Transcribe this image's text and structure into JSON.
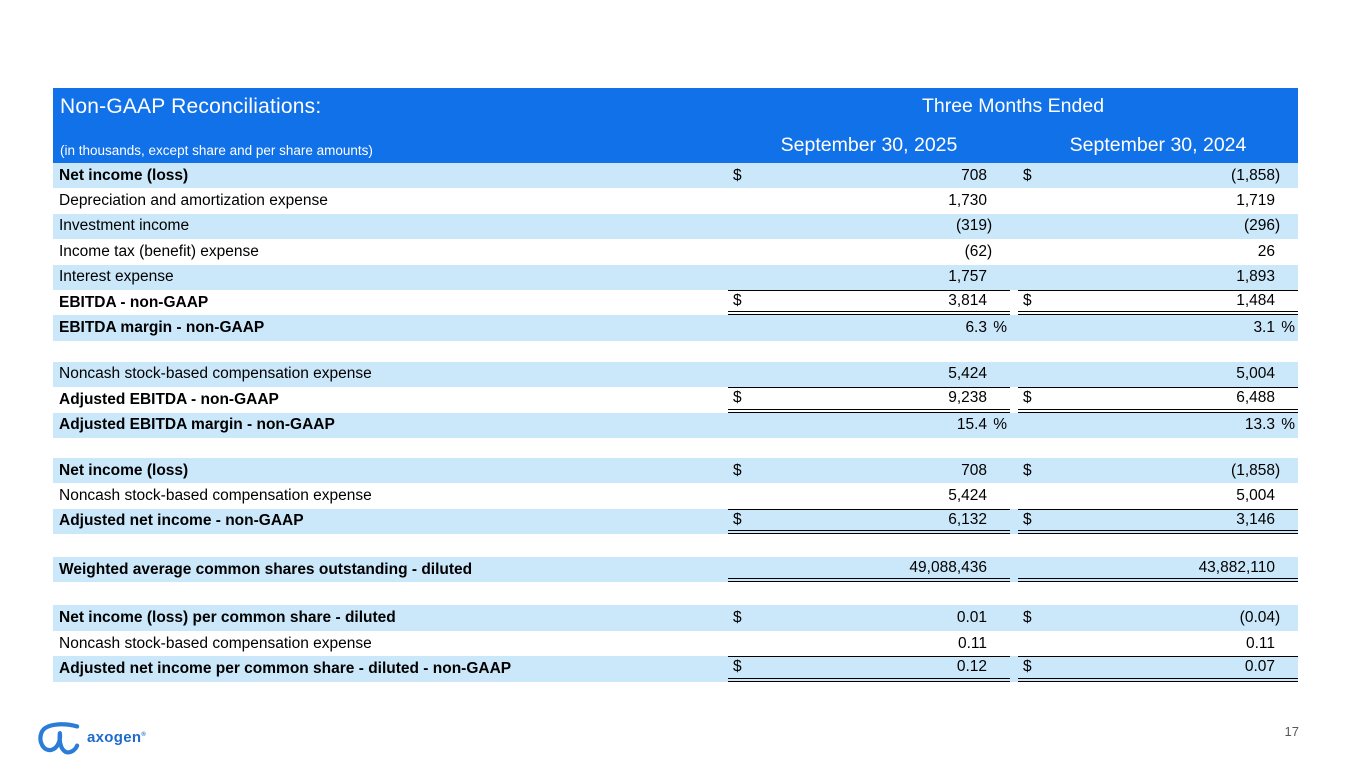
{
  "slide": {
    "page_number": "17",
    "logo_text": "axogen",
    "logo_reg": "®"
  },
  "colors": {
    "header_bg": "#1171E8",
    "row_alt_bg": "#CBE7FA",
    "header_text": "#FFFFFF",
    "logo_blue": "#1E6BCC",
    "logo_mark_blue": "#2B7CD8",
    "page_number_gray": "#595959"
  },
  "table": {
    "title": "Non-GAAP Reconciliations:",
    "subtitle": "(in thousands, except share and per share amounts)",
    "period_header": "Three Months Ended",
    "columns": [
      "September 30, 2025",
      "September 30, 2024"
    ],
    "section_gaps": [
      0,
      21,
      20,
      23,
      23
    ],
    "sections": [
      {
        "rows": [
          {
            "label": "Net income (loss)",
            "bold": true,
            "shaded": true,
            "cur1": "$",
            "v1": "708",
            "cur2": "$",
            "v2": "(1,858)",
            "rule_top": false,
            "rule_double": false
          },
          {
            "label": "Depreciation and amortization expense",
            "bold": false,
            "shaded": false,
            "cur1": "",
            "v1": "1,730",
            "cur2": "",
            "v2": "1,719",
            "rule_top": false,
            "rule_double": false
          },
          {
            "label": "Investment income",
            "bold": false,
            "shaded": true,
            "cur1": "",
            "v1": "(319)",
            "cur2": "",
            "v2": "(296)",
            "rule_top": false,
            "rule_double": false
          },
          {
            "label": "Income tax (benefit) expense",
            "bold": false,
            "shaded": false,
            "cur1": "",
            "v1": "(62)",
            "cur2": "",
            "v2": "26",
            "rule_top": false,
            "rule_double": false
          },
          {
            "label": "Interest expense",
            "bold": false,
            "shaded": true,
            "cur1": "",
            "v1": "1,757",
            "cur2": "",
            "v2": "1,893",
            "rule_top": false,
            "rule_double": false
          },
          {
            "label": "EBITDA - non-GAAP",
            "bold": true,
            "shaded": false,
            "cur1": "$",
            "v1": "3,814",
            "cur2": "$",
            "v2": "1,484",
            "rule_top": true,
            "rule_double": true
          },
          {
            "label": "EBITDA margin - non-GAAP",
            "bold": true,
            "shaded": true,
            "cur1": "",
            "v1": "6.3 %",
            "cur2": "",
            "v2": "3.1 %",
            "rule_top": false,
            "rule_double": false
          }
        ]
      },
      {
        "rows": [
          {
            "label": "Noncash stock-based compensation expense",
            "bold": false,
            "shaded": true,
            "cur1": "",
            "v1": "5,424",
            "cur2": "",
            "v2": "5,004",
            "rule_top": false,
            "rule_double": false
          },
          {
            "label": "Adjusted EBITDA - non-GAAP",
            "bold": true,
            "shaded": false,
            "cur1": "$",
            "v1": "9,238",
            "cur2": "$",
            "v2": "6,488",
            "rule_top": true,
            "rule_double": true
          },
          {
            "label": "Adjusted EBITDA margin - non-GAAP",
            "bold": true,
            "shaded": true,
            "cur1": "",
            "v1": "15.4 %",
            "cur2": "",
            "v2": "13.3 %",
            "rule_top": false,
            "rule_double": false
          }
        ]
      },
      {
        "rows": [
          {
            "label": "Net income (loss)",
            "bold": true,
            "shaded": true,
            "cur1": "$",
            "v1": "708",
            "cur2": "$",
            "v2": "(1,858)",
            "rule_top": false,
            "rule_double": false
          },
          {
            "label": "Noncash stock-based compensation expense",
            "bold": false,
            "shaded": false,
            "cur1": "",
            "v1": "5,424",
            "cur2": "",
            "v2": "5,004",
            "rule_top": false,
            "rule_double": false
          },
          {
            "label": "Adjusted net income - non-GAAP",
            "bold": true,
            "shaded": true,
            "cur1": "$",
            "v1": "6,132",
            "cur2": "$",
            "v2": "3,146",
            "rule_top": true,
            "rule_double": true
          }
        ]
      },
      {
        "rows": [
          {
            "label": "Weighted average common shares outstanding - diluted",
            "bold": true,
            "shaded": true,
            "cur1": "",
            "v1": "49,088,436",
            "cur2": "",
            "v2": "43,882,110",
            "rule_top": false,
            "rule_double": true
          }
        ]
      },
      {
        "rows": [
          {
            "label": "Net income (loss) per common share - diluted",
            "bold": true,
            "shaded": true,
            "cur1": "$",
            "v1": "0.01",
            "cur2": "$",
            "v2": "(0.04)",
            "rule_top": false,
            "rule_double": false
          },
          {
            "label": "Noncash stock-based compensation expense",
            "bold": false,
            "shaded": false,
            "cur1": "",
            "v1": "0.11",
            "cur2": "",
            "v2": "0.11",
            "rule_top": false,
            "rule_double": false
          },
          {
            "label": "Adjusted net income per common share - diluted - non-GAAP",
            "bold": true,
            "shaded": true,
            "cur1": "$",
            "v1": "0.12",
            "cur2": "$",
            "v2": "0.07",
            "rule_top": true,
            "rule_double": true
          }
        ]
      }
    ]
  }
}
